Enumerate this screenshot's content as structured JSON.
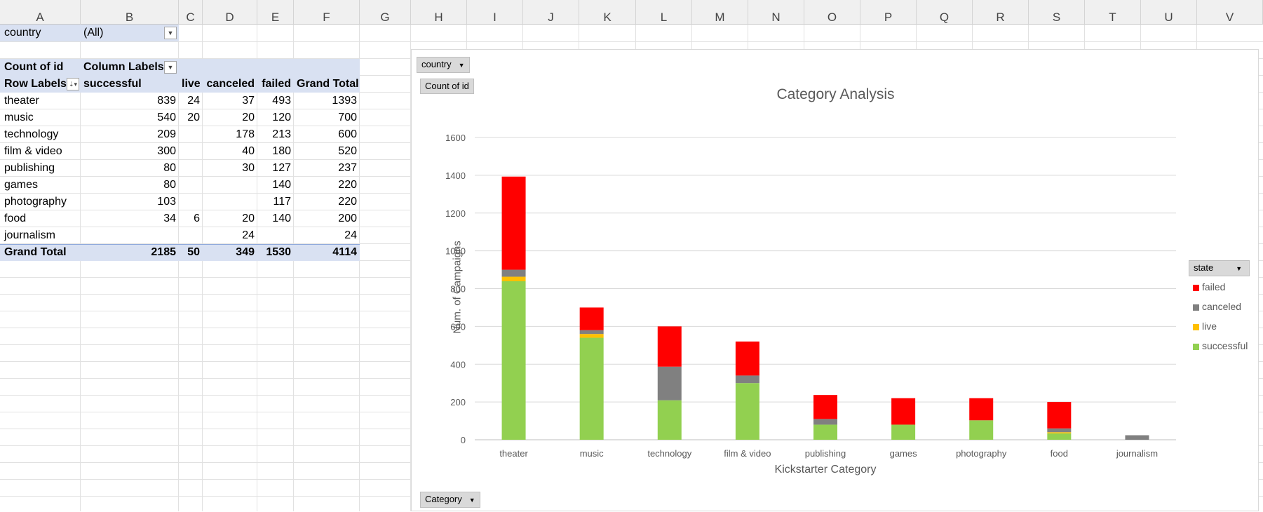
{
  "columns": [
    "A",
    "B",
    "C",
    "D",
    "E",
    "F",
    "G",
    "H",
    "I",
    "J",
    "K",
    "L",
    "M",
    "N",
    "O",
    "P",
    "Q",
    "R",
    "S",
    "T",
    "U",
    "V"
  ],
  "filter": {
    "label": "country",
    "value": "(All)"
  },
  "pivot": {
    "corner": "Count of id",
    "col_labels": "Column Labels",
    "row_labels": "Row Labels",
    "headers": [
      "successful",
      "live",
      "canceled",
      "failed",
      "Grand Total"
    ],
    "rows": [
      {
        "label": "theater",
        "successful": "839",
        "live": "24",
        "canceled": "37",
        "failed": "493",
        "total": "1393"
      },
      {
        "label": "music",
        "successful": "540",
        "live": "20",
        "canceled": "20",
        "failed": "120",
        "total": "700"
      },
      {
        "label": "technology",
        "successful": "209",
        "live": "",
        "canceled": "178",
        "failed": "213",
        "total": "600"
      },
      {
        "label": "film & video",
        "successful": "300",
        "live": "",
        "canceled": "40",
        "failed": "180",
        "total": "520"
      },
      {
        "label": "publishing",
        "successful": "80",
        "live": "",
        "canceled": "30",
        "failed": "127",
        "total": "237"
      },
      {
        "label": "games",
        "successful": "80",
        "live": "",
        "canceled": "",
        "failed": "140",
        "total": "220"
      },
      {
        "label": "photography",
        "successful": "103",
        "live": "",
        "canceled": "",
        "failed": "117",
        "total": "220"
      },
      {
        "label": "food",
        "successful": "34",
        "live": "6",
        "canceled": "20",
        "failed": "140",
        "total": "200"
      },
      {
        "label": "journalism",
        "successful": "",
        "live": "",
        "canceled": "24",
        "failed": "",
        "total": "24"
      }
    ],
    "grand_total": {
      "label": "Grand Total",
      "successful": "2185",
      "live": "50",
      "canceled": "349",
      "failed": "1530",
      "total": "4114"
    }
  },
  "chart_buttons": {
    "country": "country",
    "value": "Count of id",
    "axis": "Category"
  },
  "colors": {
    "successful": "#92d050",
    "live": "#ffc000",
    "canceled": "#808080",
    "failed": "#ff0000"
  },
  "chart_data": {
    "type": "bar",
    "stacked": true,
    "title": "Category Analysis",
    "xlabel": "Kickstarter Category",
    "ylabel": "Num. of Campaigns",
    "ylim": [
      0,
      1600
    ],
    "yticks": [
      0,
      200,
      400,
      600,
      800,
      1000,
      1200,
      1400,
      1600
    ],
    "grid": true,
    "legend_title": "state",
    "legend_position": "right",
    "legend_order": [
      "failed",
      "canceled",
      "live",
      "successful"
    ],
    "categories": [
      "theater",
      "music",
      "technology",
      "film & video",
      "publishing",
      "games",
      "photography",
      "food",
      "journalism"
    ],
    "series": [
      {
        "name": "successful",
        "values": [
          839,
          540,
          209,
          300,
          80,
          80,
          103,
          34,
          0
        ]
      },
      {
        "name": "live",
        "values": [
          24,
          20,
          0,
          0,
          0,
          0,
          0,
          6,
          0
        ]
      },
      {
        "name": "canceled",
        "values": [
          37,
          20,
          178,
          40,
          30,
          0,
          0,
          20,
          24
        ]
      },
      {
        "name": "failed",
        "values": [
          493,
          120,
          213,
          180,
          127,
          140,
          117,
          140,
          0
        ]
      }
    ]
  }
}
